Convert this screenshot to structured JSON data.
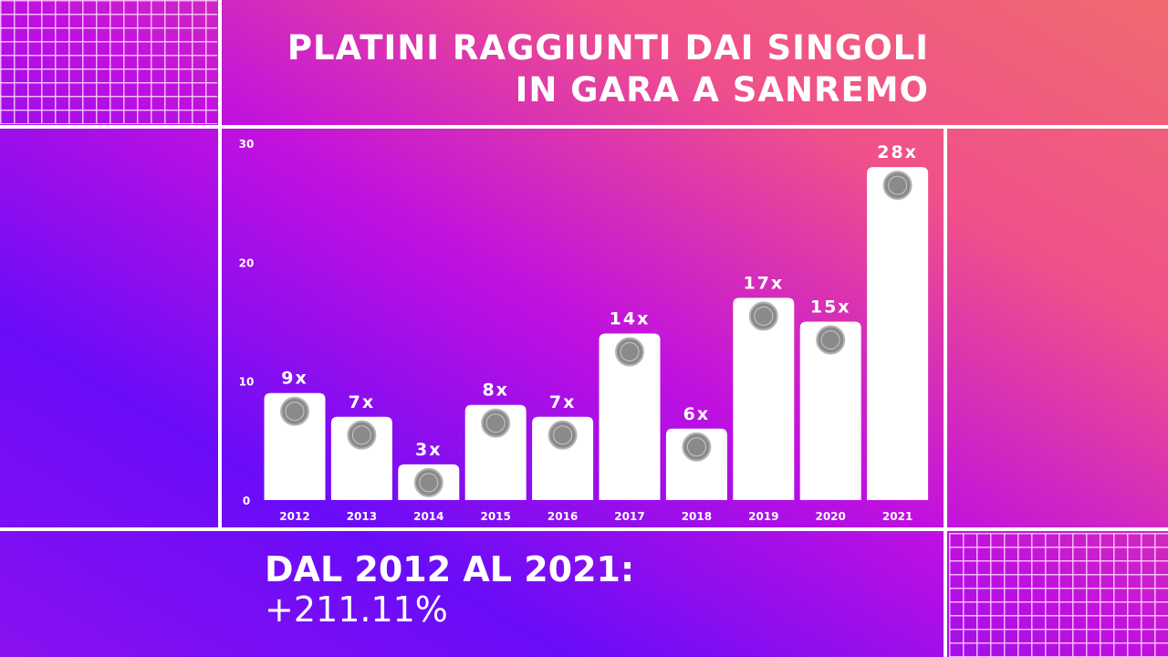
{
  "title_line1": "PLATINI RAGGIUNTI DAI SINGOLI",
  "title_line2": "IN GARA A SANREMO",
  "summary_line1": "DAL 2012 AL 2021:",
  "summary_line2": "+211.11%",
  "colors": {
    "bar": "#ffffff",
    "medal": "#8a8a8a",
    "text": "#ffffff"
  },
  "chart_data": {
    "type": "bar",
    "categories": [
      "2012",
      "2013",
      "2014",
      "2015",
      "2016",
      "2017",
      "2018",
      "2019",
      "2020",
      "2021"
    ],
    "values": [
      9,
      7,
      3,
      8,
      7,
      14,
      6,
      17,
      15,
      28
    ],
    "data_labels": [
      "9x",
      "7x",
      "3x",
      "8x",
      "7x",
      "14x",
      "6x",
      "17x",
      "15x",
      "28x"
    ],
    "title": "PLATINI RAGGIUNTI DAI SINGOLI IN GARA A SANREMO",
    "xlabel": "",
    "ylabel": "",
    "ylim": [
      0,
      30
    ],
    "yticks": [
      0,
      10,
      20,
      30
    ],
    "grid": false,
    "bar_icon": "platinum-medal-icon"
  }
}
